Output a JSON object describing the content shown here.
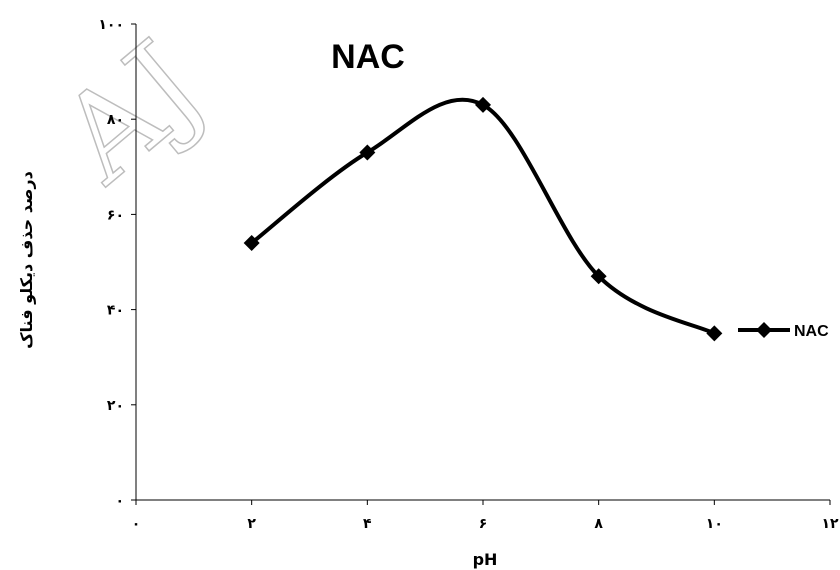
{
  "watermark": "AJ",
  "chart_data": {
    "type": "line",
    "title": "NAC",
    "xlabel": "pH",
    "ylabel": "درصد حذف دیکلو فناک",
    "xlim": [
      0,
      12
    ],
    "ylim": [
      0,
      100
    ],
    "x_ticks": [
      0,
      2,
      4,
      6,
      8,
      10,
      12
    ],
    "x_tick_labels": [
      "۰",
      "۲",
      "۴",
      "۶",
      "۸",
      "۱۰",
      "۱۲"
    ],
    "y_ticks": [
      0,
      20,
      40,
      60,
      80,
      100
    ],
    "y_tick_labels": [
      "۰",
      "۲۰",
      "۴۰",
      "۶۰",
      "۸۰",
      "۱۰۰"
    ],
    "grid": false,
    "legend": "right",
    "marker": "diamond",
    "smooth": true,
    "series": [
      {
        "name": "NAC",
        "x": [
          2,
          4,
          6,
          8,
          10
        ],
        "y": [
          54,
          73,
          83,
          47,
          35
        ],
        "color": "#000000"
      }
    ]
  }
}
